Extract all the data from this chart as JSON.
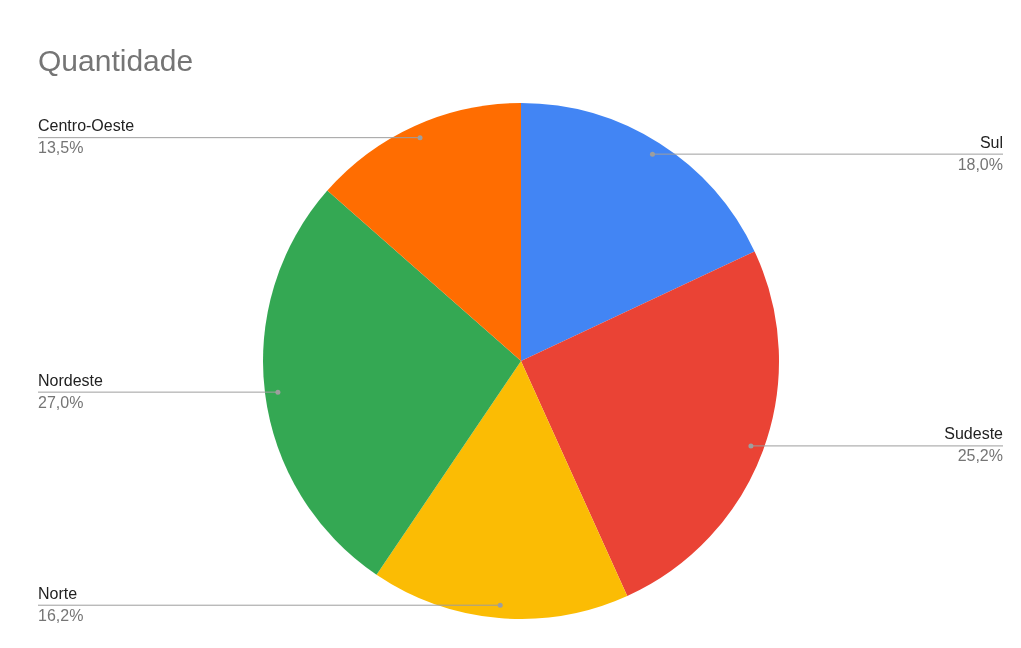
{
  "chart_data": {
    "type": "pie",
    "title": "Quantidade",
    "categories": [
      "Sul",
      "Sudeste",
      "Norte",
      "Nordeste",
      "Centro-Oeste"
    ],
    "values": [
      18.0,
      25.2,
      16.2,
      27.0,
      13.5
    ],
    "colors": [
      "#4285f4",
      "#ea4335",
      "#fbbc04",
      "#34a853",
      "#ff6d01"
    ],
    "value_labels": [
      "18,0%",
      "25,2%",
      "16,2%",
      "27,0%",
      "13,5%"
    ],
    "legend": false
  }
}
